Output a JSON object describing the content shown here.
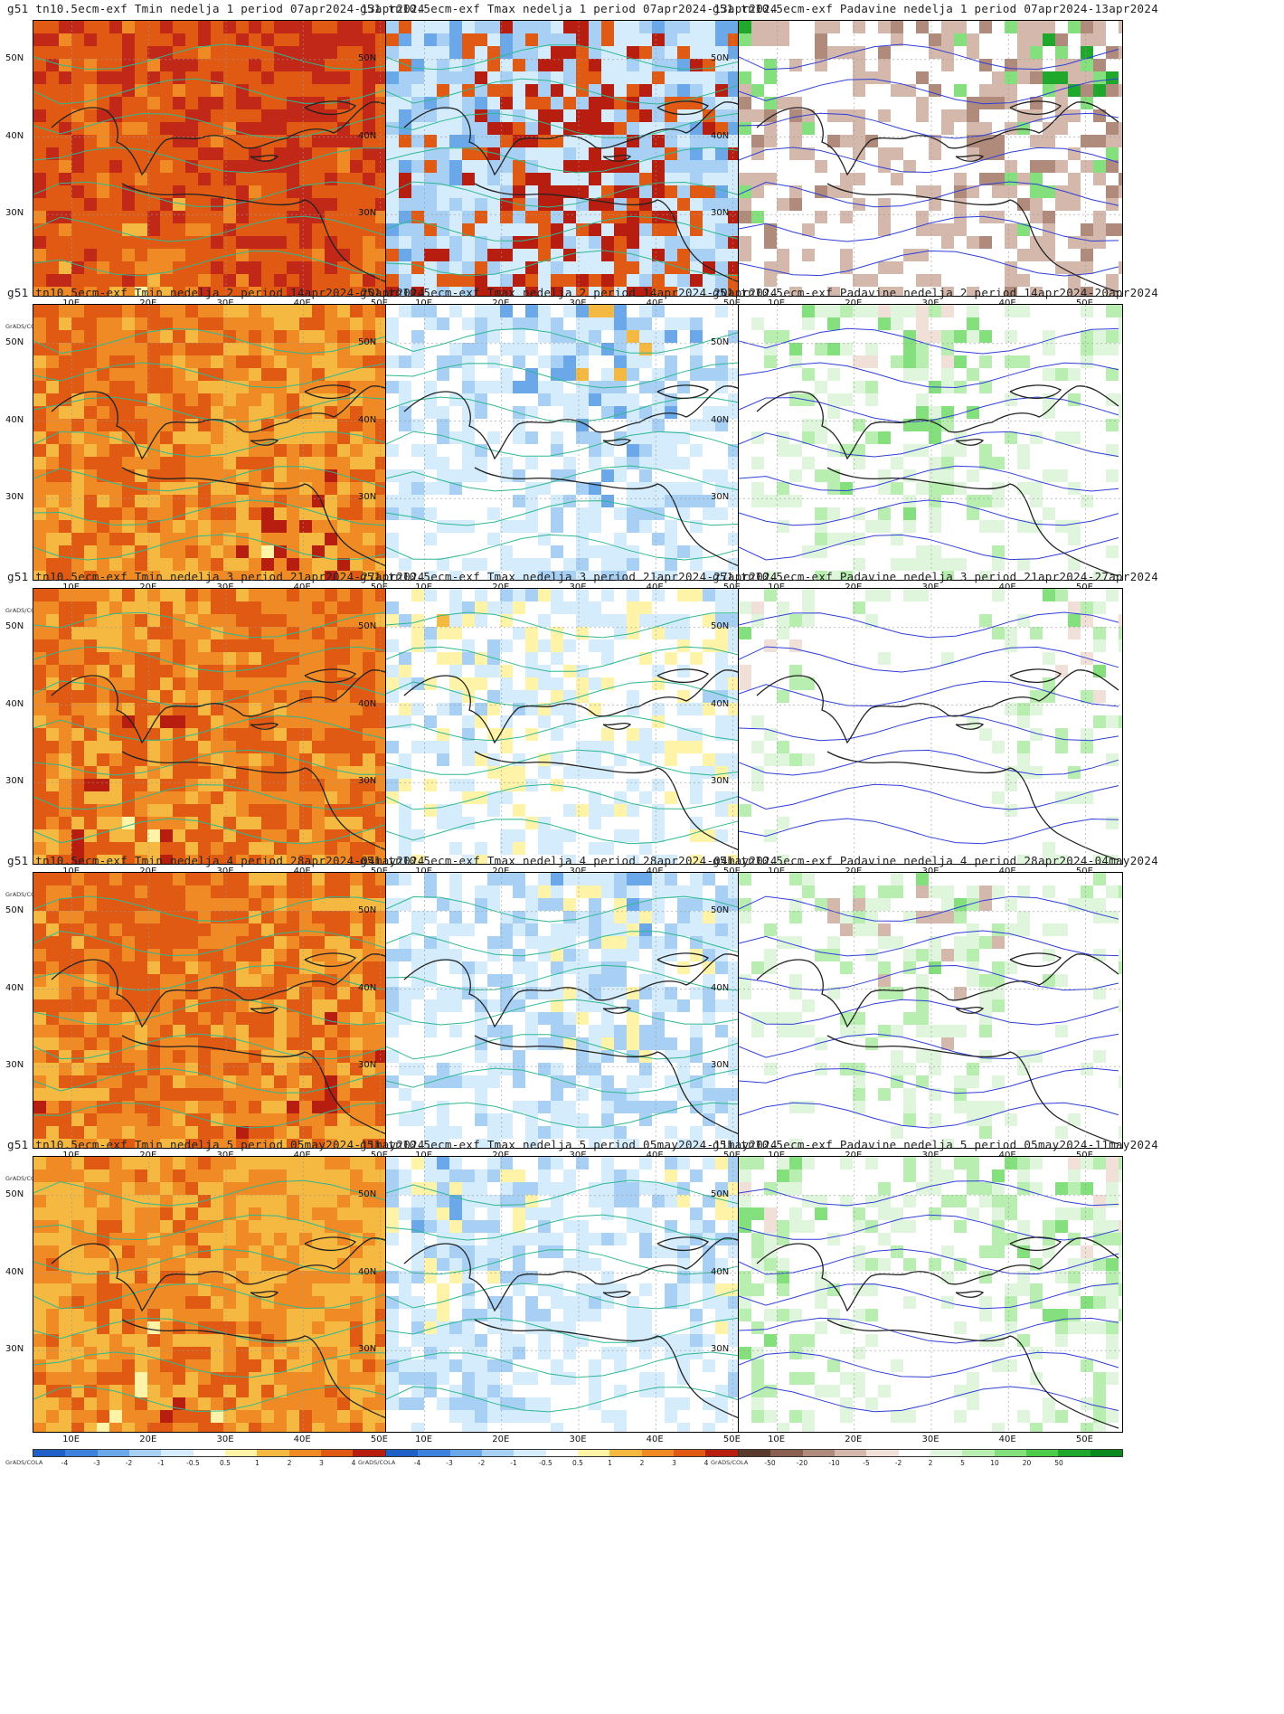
{
  "xticks": [
    "10E",
    "20E",
    "30E",
    "40E",
    "50E"
  ],
  "yticks": [
    "50N",
    "40N",
    "30N"
  ],
  "grads_label": "GrADS/COLA",
  "temp_scale": {
    "colors": [
      "#1f5fc8",
      "#3c82dc",
      "#6aa8ea",
      "#a8d0f4",
      "#d4ecfb",
      "#ffffff",
      "#fff3a8",
      "#f5b840",
      "#f08a24",
      "#e05a14",
      "#b81e10",
      "#8a0a0a"
    ],
    "labels": [
      "-4",
      "-3",
      "-2",
      "-1",
      "-0.5",
      "0.5",
      "1",
      "2",
      "3",
      "4"
    ]
  },
  "precip_scale": {
    "colors": [
      "#5a3a2a",
      "#8a6050",
      "#b08a7a",
      "#d4b8ac",
      "#f0e0d8",
      "#ffffff",
      "#e0f6dc",
      "#b8eeb0",
      "#84e07c",
      "#4ccc48",
      "#20a82c",
      "#0a8a1e"
    ],
    "labels": [
      "-50",
      "-20",
      "-10",
      "-5",
      "-2",
      "2",
      "5",
      "10",
      "20",
      "50"
    ]
  },
  "panels": [
    {
      "title": "g51 tn10.5ecm-exf Tmin nedelja 1 period 07apr2024-13apr2024",
      "field": "tmin",
      "week": 1,
      "colors": [
        "#c22818",
        "#e05a14",
        "#f08a24",
        "#f5b840",
        "#fff3a8"
      ],
      "fills": [
        0.35,
        0.4,
        0.15,
        0.08,
        0.02
      ]
    },
    {
      "title": "g51 tn10.5ecm-exf Tmax nedelja 1 period 07apr2024-13apr2024",
      "field": "tmax",
      "week": 1,
      "colors": [
        "#b81e10",
        "#e05a14",
        "#d4ecfb",
        "#a8d0f4",
        "#6aa8ea"
      ],
      "fills": [
        0.3,
        0.12,
        0.22,
        0.22,
        0.14
      ]
    },
    {
      "title": "g51 tn10.5ecm-exf Padavine nedelja 1 period 07apr2024-13apr2024",
      "field": "precip",
      "week": 1,
      "colors": [
        "#ffffff",
        "#d4b8ac",
        "#b08a7a",
        "#84e07c",
        "#20a82c"
      ],
      "fills": [
        0.55,
        0.2,
        0.1,
        0.1,
        0.05
      ]
    },
    {
      "title": "g51 tn10.5ecm-exf Tmin nedelja 2 period 14apr2024-20apr2024",
      "field": "tmin",
      "week": 2,
      "colors": [
        "#e05a14",
        "#f08a24",
        "#f5b840",
        "#b81e10",
        "#fff3a8"
      ],
      "fills": [
        0.35,
        0.3,
        0.25,
        0.08,
        0.02
      ]
    },
    {
      "title": "g51 tn10.5ecm-exf Tmax nedelja 2 period 14apr2024-20apr2024",
      "field": "tmax",
      "week": 2,
      "colors": [
        "#ffffff",
        "#d4ecfb",
        "#a8d0f4",
        "#6aa8ea",
        "#f5b840"
      ],
      "fills": [
        0.45,
        0.25,
        0.15,
        0.1,
        0.05
      ]
    },
    {
      "title": "g51 tn10.5ecm-exf Padavine nedelja 2 period 14apr2024-20apr2024",
      "field": "precip",
      "week": 2,
      "colors": [
        "#ffffff",
        "#e0f6dc",
        "#b8eeb0",
        "#84e07c",
        "#f0e0d8"
      ],
      "fills": [
        0.6,
        0.15,
        0.12,
        0.08,
        0.05
      ]
    },
    {
      "title": "g51 tn10.5ecm-exf Tmin nedelja 3 period 21apr2024-27apr2024",
      "field": "tmin",
      "week": 3,
      "colors": [
        "#f08a24",
        "#e05a14",
        "#f5b840",
        "#b81e10",
        "#fff3a8"
      ],
      "fills": [
        0.4,
        0.3,
        0.2,
        0.08,
        0.02
      ]
    },
    {
      "title": "g51 tn10.5ecm-exf Tmax nedelja 3 period 21apr2024-27apr2024",
      "field": "tmax",
      "week": 3,
      "colors": [
        "#ffffff",
        "#d4ecfb",
        "#fff3a8",
        "#a8d0f4",
        "#f5b840"
      ],
      "fills": [
        0.5,
        0.2,
        0.15,
        0.12,
        0.03
      ]
    },
    {
      "title": "g51 tn10.5ecm-exf Padavine nedelja 3 period 21apr2024-27apr2024",
      "field": "precip",
      "week": 3,
      "colors": [
        "#ffffff",
        "#e0f6dc",
        "#b8eeb0",
        "#f0e0d8",
        "#84e07c"
      ],
      "fills": [
        0.75,
        0.1,
        0.07,
        0.05,
        0.03
      ]
    },
    {
      "title": "g51 tn10.5ecm-exf Tmin nedelja 4 period 28apr2024-04may2024",
      "field": "tmin",
      "week": 4,
      "colors": [
        "#e05a14",
        "#f08a24",
        "#f5b840",
        "#b81e10",
        "#fff3a8"
      ],
      "fills": [
        0.45,
        0.25,
        0.2,
        0.08,
        0.02
      ]
    },
    {
      "title": "g51 tn10.5ecm-exf Tmax nedelja 4 period 28apr2024-04may2024",
      "field": "tmax",
      "week": 4,
      "colors": [
        "#ffffff",
        "#d4ecfb",
        "#a8d0f4",
        "#fff3a8",
        "#6aa8ea"
      ],
      "fills": [
        0.4,
        0.25,
        0.2,
        0.1,
        0.05
      ]
    },
    {
      "title": "g51 tn10.5ecm-exf Padavine nedelja 4 period 28apr2024-04may2024",
      "field": "precip",
      "week": 4,
      "colors": [
        "#ffffff",
        "#e0f6dc",
        "#b8eeb0",
        "#d4b8ac",
        "#84e07c"
      ],
      "fills": [
        0.65,
        0.13,
        0.1,
        0.07,
        0.05
      ]
    },
    {
      "title": "g51 tn10.5ecm-exf Tmin nedelja 5 period 05may2024-11may2024",
      "field": "tmin",
      "week": 5,
      "colors": [
        "#f5b840",
        "#f08a24",
        "#e05a14",
        "#fff3a8",
        "#b81e10"
      ],
      "fills": [
        0.45,
        0.3,
        0.18,
        0.05,
        0.02
      ]
    },
    {
      "title": "g51 tn10.5ecm-exf Tmax nedelja 5 period 05may2024-11may2024",
      "field": "tmax",
      "week": 5,
      "colors": [
        "#ffffff",
        "#d4ecfb",
        "#a8d0f4",
        "#fff3a8",
        "#6aa8ea"
      ],
      "fills": [
        0.45,
        0.25,
        0.15,
        0.1,
        0.05
      ]
    },
    {
      "title": "g51 tn10.5ecm-exf Padavine nedelja 5 period 05may2024-11may2024",
      "field": "precip",
      "week": 5,
      "colors": [
        "#ffffff",
        "#e0f6dc",
        "#b8eeb0",
        "#84e07c",
        "#f0e0d8"
      ],
      "fills": [
        0.6,
        0.15,
        0.12,
        0.08,
        0.05
      ]
    }
  ]
}
